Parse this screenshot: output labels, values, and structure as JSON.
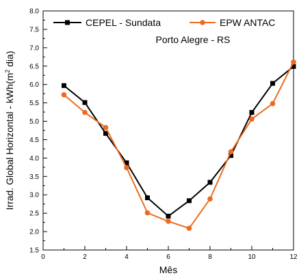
{
  "chart_data": {
    "type": "line",
    "title": "Porto Alegre - RS",
    "xlabel": "Mês",
    "ylabel": {
      "prefix": "Irrad. Global Horizontal - kWh(m",
      "sup": "2",
      "suffix": " dia)"
    },
    "xlim": [
      0,
      12
    ],
    "ylim": [
      1.5,
      8.0
    ],
    "xticks": [
      "0",
      "2",
      "4",
      "6",
      "8",
      "10",
      "12"
    ],
    "yticks": [
      "1.5",
      "2.0",
      "2.5",
      "3.0",
      "3.5",
      "4.0",
      "4.5",
      "5.0",
      "5.5",
      "6.0",
      "6.5",
      "7.0",
      "7.5",
      "8.0"
    ],
    "legend_position": "top",
    "grid": false,
    "x": [
      1,
      2,
      3,
      4,
      5,
      6,
      7,
      8,
      9,
      10,
      11,
      12
    ],
    "series": [
      {
        "name": "CEPEL - Sundata",
        "color": "#000000",
        "marker": "square",
        "values": [
          5.97,
          5.51,
          4.67,
          3.87,
          2.92,
          2.42,
          2.84,
          3.34,
          4.07,
          5.24,
          6.03,
          6.49
        ]
      },
      {
        "name": "EPW ANTAC",
        "color": "#ee6a1f",
        "marker": "circle",
        "values": [
          5.72,
          5.24,
          4.83,
          3.74,
          2.51,
          2.28,
          2.09,
          2.89,
          4.17,
          5.06,
          5.48,
          6.61
        ]
      }
    ]
  }
}
